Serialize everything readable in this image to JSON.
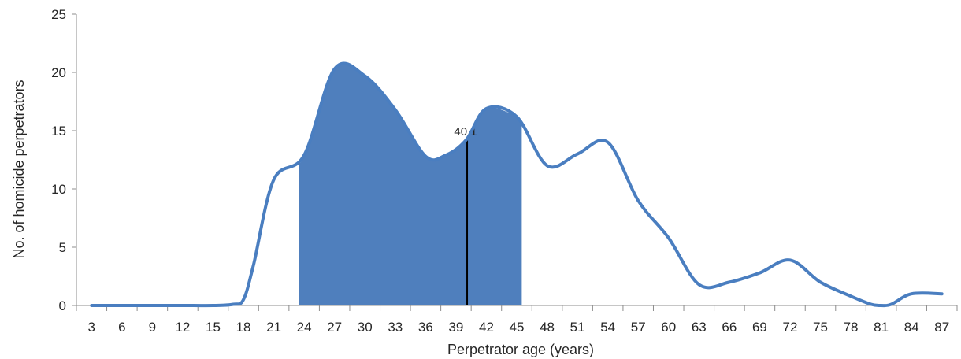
{
  "chart_data": {
    "type": "area",
    "xlabel": "Perpetrator age (years)",
    "ylabel": "No. of homicide perpetrators",
    "xlim": [
      1.5,
      88.5
    ],
    "ylim": [
      0,
      25
    ],
    "yticks": [
      0,
      5,
      10,
      15,
      20,
      25
    ],
    "xticks": [
      3,
      6,
      9,
      12,
      15,
      18,
      21,
      24,
      27,
      30,
      33,
      36,
      39,
      42,
      45,
      48,
      51,
      54,
      57,
      60,
      63,
      66,
      69,
      72,
      75,
      78,
      81,
      84,
      87
    ],
    "grid": false,
    "legend": "none",
    "series": [
      {
        "x": [
          3,
          6,
          9,
          12,
          15,
          17,
          18,
          19,
          21,
          24,
          27,
          30,
          33,
          36,
          38,
          40,
          42,
          45,
          48,
          51,
          54,
          57,
          60,
          63,
          66,
          69,
          72,
          75,
          78,
          80,
          81,
          82,
          84,
          87
        ],
        "values": [
          0,
          0,
          0,
          0,
          0,
          0.1,
          0.5,
          3.5,
          10.8,
          12.9,
          20.3,
          19.7,
          16.8,
          12.8,
          12.9,
          14.2,
          16.9,
          16.2,
          12.0,
          13.0,
          14.0,
          9.0,
          5.8,
          1.8,
          2.0,
          2.8,
          3.9,
          2.0,
          0.8,
          0.1,
          0.0,
          0.1,
          1.0,
          1.0
        ]
      }
    ],
    "shaded_range": [
      23.5,
      45.5
    ],
    "median_line": {
      "x": 40.1,
      "label": "40.1"
    },
    "colors": {
      "line": "#4A7EC0",
      "fill": "#4F7FBD",
      "axis": "#8C8C8C",
      "median": "#000000"
    }
  }
}
